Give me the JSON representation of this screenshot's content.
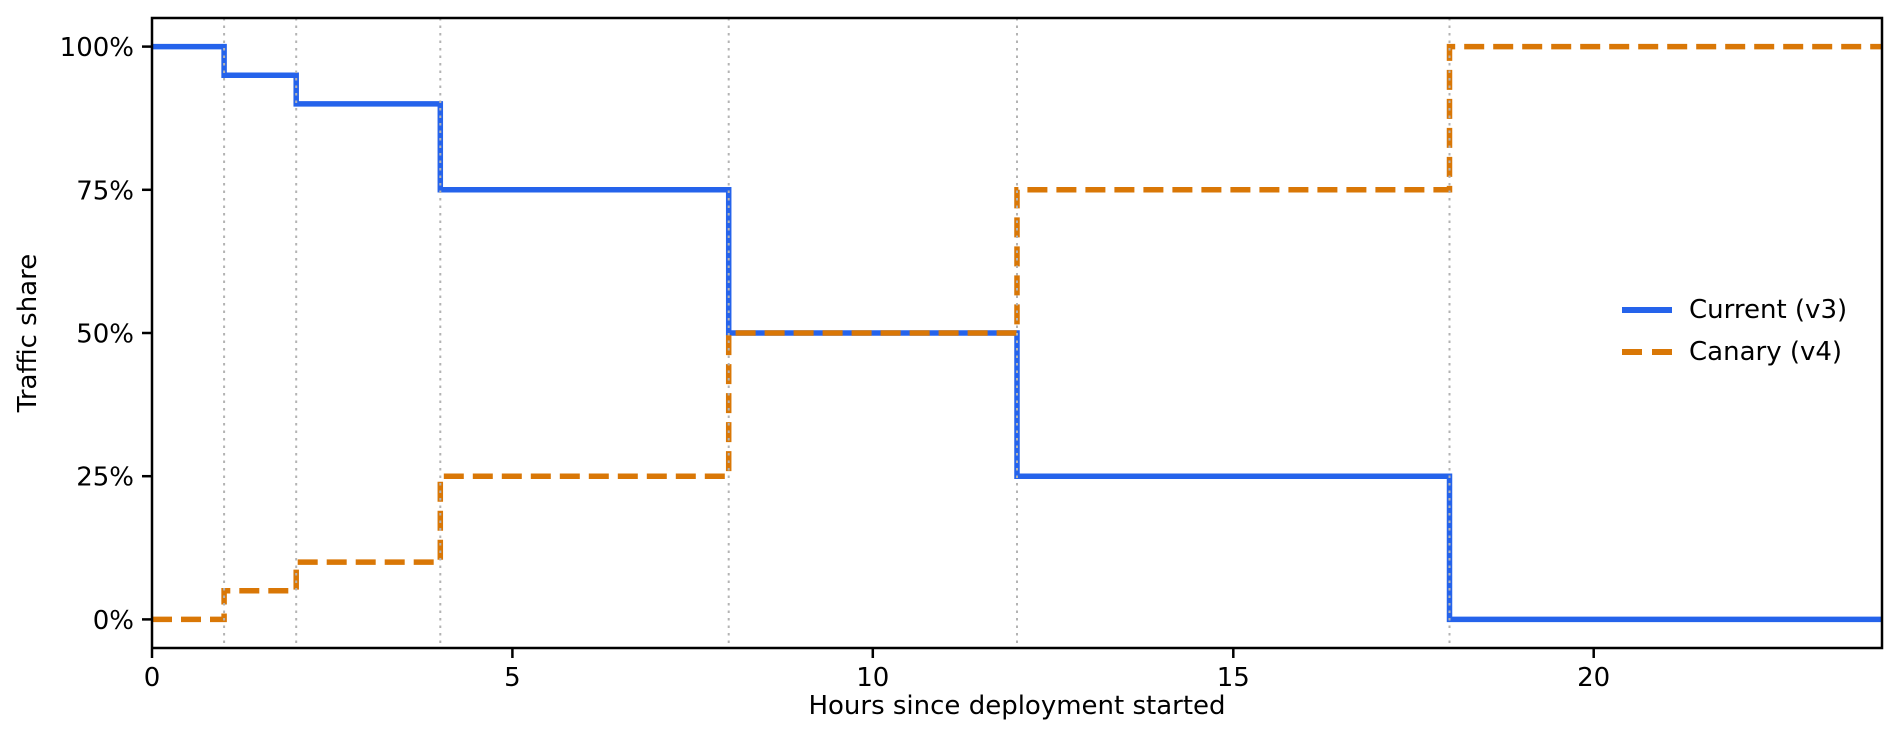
{
  "figure": {
    "background": "#ffffff"
  },
  "chart_data": {
    "type": "line",
    "line_shape": "step-post",
    "title": "",
    "xlabel": "Hours since deployment started",
    "ylabel": "Traffic share",
    "xlim": [
      0,
      24
    ],
    "ylim": [
      -5,
      105
    ],
    "x_ticks": [
      0,
      5,
      10,
      15,
      20
    ],
    "y_ticks": [
      {
        "value": 0,
        "label": "0%"
      },
      {
        "value": 25,
        "label": "25%"
      },
      {
        "value": 50,
        "label": "50%"
      },
      {
        "value": 75,
        "label": "75%"
      },
      {
        "value": 100,
        "label": "100%"
      }
    ],
    "step_hours": [
      0,
      1,
      2,
      4,
      8,
      12,
      18,
      24
    ],
    "gridline_hours": [
      1,
      2,
      4,
      8,
      12,
      18
    ],
    "grid_color": "#b3b3b3",
    "axis_color": "#000000",
    "series": [
      {
        "name": "Current (v3)",
        "color": "#2563eb",
        "line_style": "solid",
        "values": [
          100,
          95,
          90,
          75,
          50,
          25,
          0
        ]
      },
      {
        "name": "Canary (v4)",
        "color": "#d97706",
        "line_style": "dashed",
        "values": [
          0,
          5,
          10,
          25,
          50,
          75,
          100
        ]
      }
    ],
    "legend": {
      "location": "center-right",
      "frame": false,
      "entries": [
        "Current (v3)",
        "Canary (v4)"
      ]
    }
  }
}
